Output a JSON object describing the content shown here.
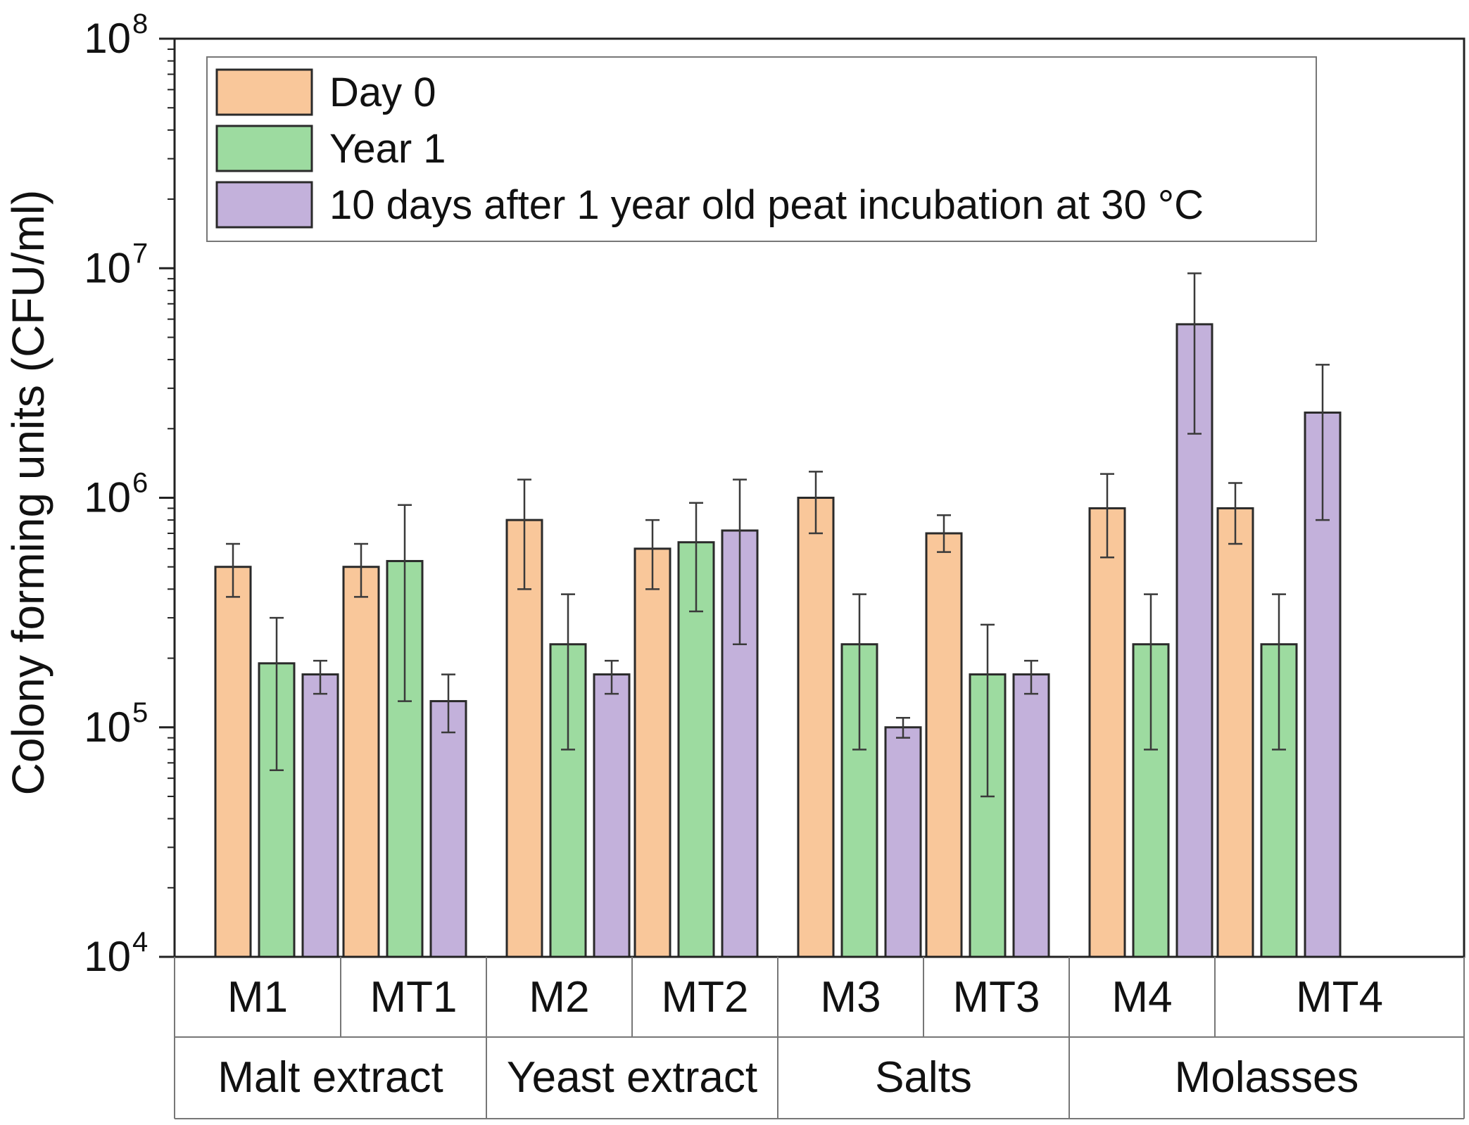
{
  "chart_data": {
    "type": "bar",
    "yscale": "log",
    "ylabel": "Colony forming units (CFU/ml)",
    "ylim": [
      10000,
      100000000
    ],
    "y_tick_labels": [
      {
        "base": "10",
        "exp": "4",
        "value": 10000
      },
      {
        "base": "10",
        "exp": "5",
        "value": 100000
      },
      {
        "base": "10",
        "exp": "6",
        "value": 1000000
      },
      {
        "base": "10",
        "exp": "7",
        "value": 10000000
      },
      {
        "base": "10",
        "exp": "8",
        "value": 100000000
      }
    ],
    "categories": [
      "M1",
      "MT1",
      "M2",
      "MT2",
      "M3",
      "MT3",
      "M4",
      "MT4"
    ],
    "groups": [
      {
        "label": "Malt extract",
        "members": [
          "M1",
          "MT1"
        ]
      },
      {
        "label": "Yeast extract",
        "members": [
          "M2",
          "MT2"
        ]
      },
      {
        "label": "Salts",
        "members": [
          "M3",
          "MT3"
        ]
      },
      {
        "label": "Molasses",
        "members": [
          "M4",
          "MT4"
        ]
      }
    ],
    "series": [
      {
        "name": "Day 0",
        "color": "#F9C79A",
        "values": [
          500000,
          500000,
          800000,
          600000,
          1000000,
          700000,
          900000,
          900000
        ],
        "err_low": [
          370000,
          370000,
          400000,
          400000,
          700000,
          580000,
          550000,
          630000
        ],
        "err_high": [
          630000,
          630000,
          1200000,
          800000,
          1300000,
          840000,
          1270000,
          1160000
        ]
      },
      {
        "name": "Year 1",
        "color": "#9DDBA0",
        "values": [
          190000,
          530000,
          230000,
          640000,
          230000,
          170000,
          230000,
          230000
        ],
        "err_low": [
          65000,
          130000,
          80000,
          320000,
          80000,
          50000,
          80000,
          80000
        ],
        "err_high": [
          300000,
          930000,
          380000,
          950000,
          380000,
          280000,
          380000,
          380000
        ]
      },
      {
        "name": "10 days after 1 year old peat incubation at 30 °C",
        "color": "#C3B1DB",
        "values": [
          170000,
          130000,
          170000,
          720000,
          100000,
          170000,
          5700000,
          2350000
        ],
        "err_low": [
          140000,
          95000,
          140000,
          230000,
          90000,
          140000,
          1900000,
          800000
        ],
        "err_high": [
          195000,
          170000,
          195000,
          1200000,
          110000,
          195000,
          9500000,
          3800000
        ]
      }
    ],
    "legend_position": "top-left",
    "grid": false
  }
}
